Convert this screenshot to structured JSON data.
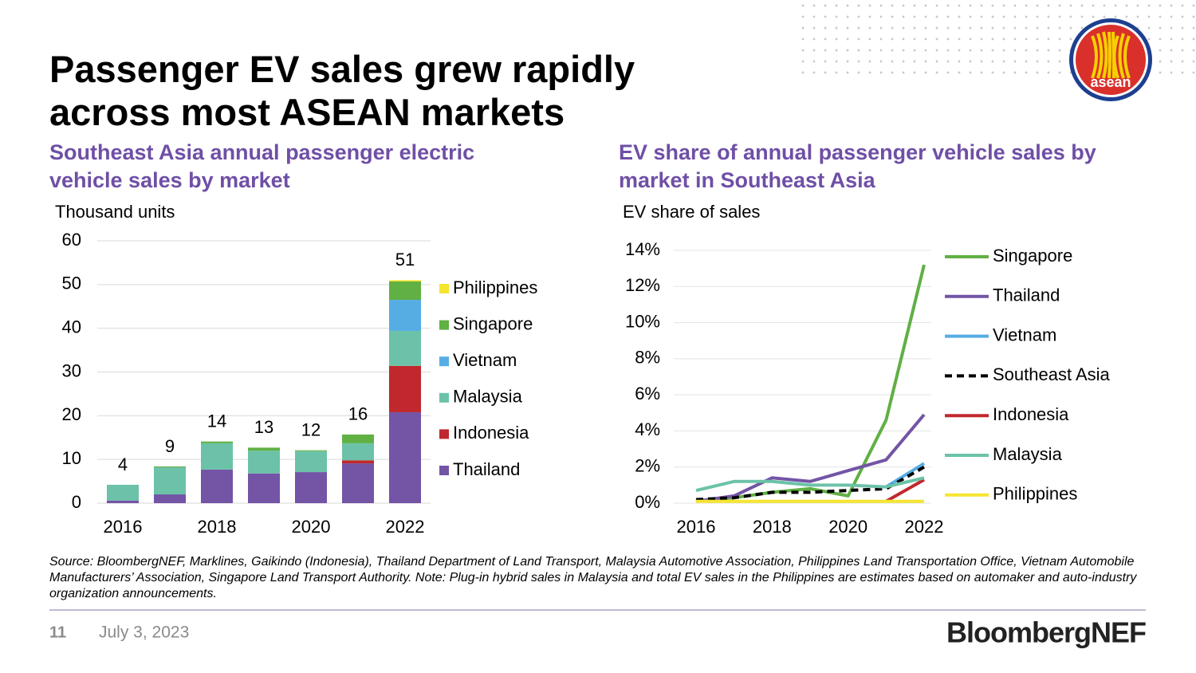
{
  "slide": {
    "title": "Passenger EV sales grew rapidly across most ASEAN markets",
    "logo_text": "asean",
    "source": "Source: BloombergNEF, Marklines, Gaikindo (Indonesia), Thailand Department of Land Transport, Malaysia Automotive Association, Philippines Land Transportation Office, Vietnam Automobile Manufacturers’ Association, Singapore Land Transport Authority. Note: Plug-in hybrid sales in Malaysia and total EV sales in the Philippines are estimates based on automaker and auto-industry organization announcements.",
    "page_number": "11",
    "date": "July 3, 2023",
    "brand": "BloombergNEF"
  },
  "chart_data": [
    {
      "type": "bar",
      "stacked": true,
      "title": "Southeast Asia annual passenger electric vehicle sales by market",
      "y_label": "Thousand units",
      "categories": [
        "2016",
        null,
        "2018",
        null,
        "2020",
        null,
        "2022"
      ],
      "series": [
        {
          "name": "Thailand",
          "color": "#7354a5",
          "values": [
            0.6,
            2.0,
            7.7,
            6.8,
            7.1,
            9.1,
            20.8
          ]
        },
        {
          "name": "Indonesia",
          "color": "#c0282d",
          "values": [
            0,
            0,
            0,
            0,
            0,
            0.7,
            10.6
          ]
        },
        {
          "name": "Malaysia",
          "color": "#6cc2a8",
          "values": [
            3.6,
            6.2,
            6.0,
            5.2,
            4.8,
            3.9,
            8.0
          ]
        },
        {
          "name": "Vietnam",
          "color": "#56ade4",
          "values": [
            0,
            0,
            0,
            0,
            0,
            0,
            7.1
          ]
        },
        {
          "name": "Singapore",
          "color": "#60b044",
          "values": [
            0,
            0.2,
            0.4,
            0.7,
            0.2,
            2.0,
            4.2
          ]
        },
        {
          "name": "Philippines",
          "color": "#f5e531",
          "values": [
            0,
            0,
            0,
            0,
            0,
            0,
            0.3
          ]
        }
      ],
      "totals": [
        4,
        9,
        14,
        13,
        12,
        16,
        51
      ],
      "ylim": [
        0,
        60
      ],
      "yticks": [
        0,
        10,
        20,
        30,
        40,
        50,
        60
      ],
      "grid": true,
      "legend": "right"
    },
    {
      "type": "line",
      "title": "EV share of annual passenger vehicle sales by market in Southeast Asia",
      "y_label": "EV share of sales",
      "x": [
        2016,
        2017,
        2018,
        2019,
        2020,
        2021,
        2022
      ],
      "xlim": [
        2016,
        2022
      ],
      "xticks": [
        2016,
        2018,
        2020,
        2022
      ],
      "series": [
        {
          "name": "Singapore",
          "color": "#60b044",
          "values": [
            0.1,
            0.3,
            0.6,
            0.8,
            0.4,
            4.6,
            13.2
          ]
        },
        {
          "name": "Thailand",
          "color": "#7354a5",
          "values": [
            0.1,
            0.4,
            1.4,
            1.2,
            1.8,
            2.4,
            4.9
          ]
        },
        {
          "name": "Vietnam",
          "color": "#56ade4",
          "values": [
            null,
            null,
            null,
            null,
            null,
            0.9,
            2.2
          ]
        },
        {
          "name": "Southeast Asia",
          "color": "#000000",
          "dashed": true,
          "values": [
            0.2,
            0.3,
            0.6,
            0.6,
            0.7,
            0.8,
            2.0
          ]
        },
        {
          "name": "Indonesia",
          "color": "#c0282d",
          "values": [
            null,
            null,
            null,
            null,
            null,
            0.1,
            1.3
          ]
        },
        {
          "name": "Malaysia",
          "color": "#6cc2a8",
          "values": [
            0.7,
            1.2,
            1.2,
            1.0,
            1.0,
            0.9,
            1.4
          ]
        },
        {
          "name": "Philippines",
          "color": "#f5e531",
          "values": [
            0.1,
            0.1,
            0.1,
            0.1,
            0.1,
            0.1,
            0.1
          ]
        }
      ],
      "ylim": [
        0,
        14
      ],
      "yticks": [
        {
          "value": 0,
          "label": "0%"
        },
        {
          "value": 2,
          "label": "2%"
        },
        {
          "value": 4,
          "label": "4%"
        },
        {
          "value": 6,
          "label": "6%"
        },
        {
          "value": 8,
          "label": "8%"
        },
        {
          "value": 10,
          "label": "10%"
        },
        {
          "value": 12,
          "label": "12%"
        },
        {
          "value": 14,
          "label": "14%"
        }
      ],
      "grid": true,
      "legend": "right"
    }
  ]
}
